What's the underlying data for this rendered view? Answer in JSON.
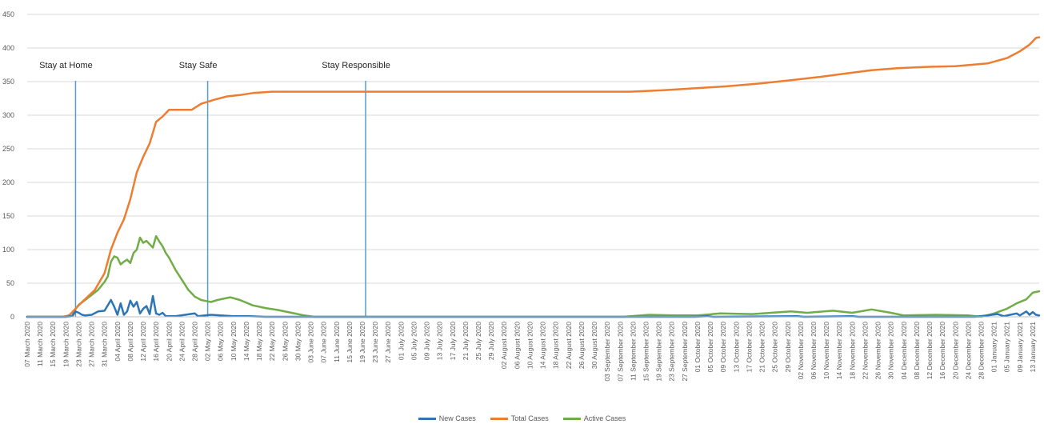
{
  "chart_data": {
    "type": "line",
    "title": "",
    "xlabel": "",
    "ylabel": "",
    "ylim": [
      0,
      450
    ],
    "yticks": [
      0,
      50,
      100,
      150,
      200,
      250,
      300,
      350,
      400,
      450
    ],
    "grid": true,
    "legend_position": "bottom",
    "x_start": "2020-03-07",
    "x_end": "2021-01-15",
    "tick_labels": [
      "07 March 2020",
      "11 March 2020",
      "15 March 2020",
      "19 March 2020",
      "23 March 2020",
      "27 March 2020",
      "31 March 2020",
      "04 April 2020",
      "08 April 2020",
      "12 April 2020",
      "16 April 2020",
      "20 April 2020",
      "24 April 2020",
      "28 April 2020",
      "02 May 2020",
      "06 May 2020",
      "10 May 2020",
      "14 May 2020",
      "18 May 2020",
      "22 May 2020",
      "26 May 2020",
      "30 May 2020",
      "03 June 2020",
      "07 June 2020",
      "11 June 2020",
      "15 June 2020",
      "19 June 2020",
      "23 June 2020",
      "27 June 2020",
      "01 July 2020",
      "05 July 2020",
      "09 July 2020",
      "13 July 2020",
      "17 July 2020",
      "21 July 2020",
      "25 July 2020",
      "29 July 2020",
      "02 August 2020",
      "06 August 2020",
      "10 August 2020",
      "14 August 2020",
      "18 August 2020",
      "22 August 2020",
      "26 August 2020",
      "30 August 2020",
      "03 September 2020",
      "07 September 2020",
      "11 September 2020",
      "15 September 2020",
      "19 September 2020",
      "23 September 2020",
      "27 September 2020",
      "01 October 2020",
      "05 October 2020",
      "09 October 2020",
      "13 October 2020",
      "17 October 2020",
      "21 October 2020",
      "25 October 2020",
      "29 October 2020",
      "02 November 2020",
      "06 November 2020",
      "10 November 2020",
      "14 November 2020",
      "18 November 2020",
      "22 November 2020",
      "26 November 2020",
      "30 November 2020",
      "04 December 2020",
      "08 December 2020",
      "12 December 2020",
      "16 December 2020",
      "20 December 2020",
      "24 December 2020",
      "28 December 2020",
      "01 January 2021",
      "05 January 2021",
      "09 January 2021",
      "13 January 2021"
    ],
    "annotations": [
      {
        "label": "Stay at Home",
        "date": "2020-03-22"
      },
      {
        "label": "Stay Safe",
        "date": "2020-05-02"
      },
      {
        "label": "Stay Responsible",
        "date": "2020-06-20"
      }
    ],
    "series": [
      {
        "name": "New Cases",
        "color": "#2e75b6",
        "points": [
          [
            "2020-03-07",
            0
          ],
          [
            "2020-03-19",
            0
          ],
          [
            "2020-03-21",
            1
          ],
          [
            "2020-03-22",
            8
          ],
          [
            "2020-03-23",
            6
          ],
          [
            "2020-03-24",
            3
          ],
          [
            "2020-03-25",
            2
          ],
          [
            "2020-03-27",
            3
          ],
          [
            "2020-03-29",
            8
          ],
          [
            "2020-03-31",
            9
          ],
          [
            "2020-04-02",
            25
          ],
          [
            "2020-04-03",
            15
          ],
          [
            "2020-04-04",
            3
          ],
          [
            "2020-04-05",
            20
          ],
          [
            "2020-04-06",
            3
          ],
          [
            "2020-04-07",
            8
          ],
          [
            "2020-04-08",
            24
          ],
          [
            "2020-04-09",
            15
          ],
          [
            "2020-04-10",
            22
          ],
          [
            "2020-04-11",
            5
          ],
          [
            "2020-04-12",
            12
          ],
          [
            "2020-04-13",
            16
          ],
          [
            "2020-04-14",
            4
          ],
          [
            "2020-04-15",
            31
          ],
          [
            "2020-04-16",
            5
          ],
          [
            "2020-04-17",
            3
          ],
          [
            "2020-04-18",
            6
          ],
          [
            "2020-04-19",
            1
          ],
          [
            "2020-04-22",
            1
          ],
          [
            "2020-04-28",
            5
          ],
          [
            "2020-04-29",
            1
          ],
          [
            "2020-05-03",
            3
          ],
          [
            "2020-05-06",
            2
          ],
          [
            "2020-05-10",
            1
          ],
          [
            "2020-05-15",
            1
          ],
          [
            "2020-05-20",
            0
          ],
          [
            "2020-09-30",
            0
          ],
          [
            "2020-10-04",
            1
          ],
          [
            "2020-10-06",
            0
          ],
          [
            "2020-11-01",
            1
          ],
          [
            "2020-11-03",
            0
          ],
          [
            "2020-11-18",
            1
          ],
          [
            "2020-11-20",
            0
          ],
          [
            "2020-12-26",
            0
          ],
          [
            "2020-12-30",
            2
          ],
          [
            "2021-01-02",
            4
          ],
          [
            "2021-01-04",
            1
          ],
          [
            "2021-01-06",
            3
          ],
          [
            "2021-01-08",
            5
          ],
          [
            "2021-01-09",
            2
          ],
          [
            "2021-01-11",
            8
          ],
          [
            "2021-01-12",
            3
          ],
          [
            "2021-01-13",
            7
          ],
          [
            "2021-01-14",
            3
          ],
          [
            "2021-01-15",
            2
          ]
        ]
      },
      {
        "name": "Total Cases",
        "color": "#ed7d31",
        "points": [
          [
            "2020-03-07",
            0
          ],
          [
            "2020-03-18",
            0
          ],
          [
            "2020-03-20",
            2
          ],
          [
            "2020-03-22",
            12
          ],
          [
            "2020-03-24",
            22
          ],
          [
            "2020-03-28",
            40
          ],
          [
            "2020-03-31",
            65
          ],
          [
            "2020-04-02",
            100
          ],
          [
            "2020-04-04",
            125
          ],
          [
            "2020-04-06",
            145
          ],
          [
            "2020-04-08",
            175
          ],
          [
            "2020-04-10",
            215
          ],
          [
            "2020-04-12",
            238
          ],
          [
            "2020-04-14",
            258
          ],
          [
            "2020-04-16",
            290
          ],
          [
            "2020-04-18",
            298
          ],
          [
            "2020-04-20",
            308
          ],
          [
            "2020-04-27",
            308
          ],
          [
            "2020-04-30",
            317
          ],
          [
            "2020-05-04",
            323
          ],
          [
            "2020-05-08",
            328
          ],
          [
            "2020-05-12",
            330
          ],
          [
            "2020-05-16",
            333
          ],
          [
            "2020-05-22",
            335
          ],
          [
            "2020-09-10",
            335
          ],
          [
            "2020-09-20",
            337
          ],
          [
            "2020-09-30",
            340
          ],
          [
            "2020-10-10",
            343
          ],
          [
            "2020-10-20",
            347
          ],
          [
            "2020-10-30",
            352
          ],
          [
            "2020-11-08",
            357
          ],
          [
            "2020-11-16",
            362
          ],
          [
            "2020-11-24",
            367
          ],
          [
            "2020-12-02",
            370
          ],
          [
            "2020-12-12",
            372
          ],
          [
            "2020-12-20",
            373
          ],
          [
            "2020-12-30",
            377
          ],
          [
            "2021-01-05",
            385
          ],
          [
            "2021-01-09",
            395
          ],
          [
            "2021-01-12",
            405
          ],
          [
            "2021-01-14",
            415
          ],
          [
            "2021-01-15",
            416
          ]
        ]
      },
      {
        "name": "Active Cases",
        "color": "#70ad47",
        "points": [
          [
            "2020-03-07",
            0
          ],
          [
            "2020-03-19",
            0
          ],
          [
            "2020-03-21",
            5
          ],
          [
            "2020-03-23",
            18
          ],
          [
            "2020-03-25",
            25
          ],
          [
            "2020-03-29",
            40
          ],
          [
            "2020-03-31",
            52
          ],
          [
            "2020-04-01",
            60
          ],
          [
            "2020-04-02",
            82
          ],
          [
            "2020-04-03",
            90
          ],
          [
            "2020-04-04",
            88
          ],
          [
            "2020-04-05",
            78
          ],
          [
            "2020-04-06",
            82
          ],
          [
            "2020-04-07",
            85
          ],
          [
            "2020-04-08",
            80
          ],
          [
            "2020-04-09",
            95
          ],
          [
            "2020-04-10",
            100
          ],
          [
            "2020-04-11",
            118
          ],
          [
            "2020-04-12",
            110
          ],
          [
            "2020-04-13",
            113
          ],
          [
            "2020-04-14",
            108
          ],
          [
            "2020-04-15",
            103
          ],
          [
            "2020-04-16",
            120
          ],
          [
            "2020-04-17",
            112
          ],
          [
            "2020-04-18",
            105
          ],
          [
            "2020-04-19",
            95
          ],
          [
            "2020-04-20",
            88
          ],
          [
            "2020-04-22",
            70
          ],
          [
            "2020-04-24",
            55
          ],
          [
            "2020-04-26",
            40
          ],
          [
            "2020-04-28",
            30
          ],
          [
            "2020-04-30",
            25
          ],
          [
            "2020-05-03",
            22
          ],
          [
            "2020-05-05",
            25
          ],
          [
            "2020-05-09",
            29
          ],
          [
            "2020-05-12",
            25
          ],
          [
            "2020-05-16",
            17
          ],
          [
            "2020-05-20",
            13
          ],
          [
            "2020-05-24",
            10
          ],
          [
            "2020-05-28",
            6
          ],
          [
            "2020-06-01",
            2
          ],
          [
            "2020-06-04",
            0
          ],
          [
            "2020-09-08",
            0
          ],
          [
            "2020-09-16",
            3
          ],
          [
            "2020-09-24",
            2
          ],
          [
            "2020-10-01",
            2
          ],
          [
            "2020-10-08",
            5
          ],
          [
            "2020-10-18",
            4
          ],
          [
            "2020-10-30",
            8
          ],
          [
            "2020-11-04",
            6
          ],
          [
            "2020-11-12",
            9
          ],
          [
            "2020-11-18",
            6
          ],
          [
            "2020-11-24",
            11
          ],
          [
            "2020-11-30",
            6
          ],
          [
            "2020-12-04",
            2
          ],
          [
            "2020-12-14",
            3
          ],
          [
            "2020-12-24",
            2
          ],
          [
            "2020-12-28",
            0
          ],
          [
            "2021-01-01",
            5
          ],
          [
            "2021-01-05",
            12
          ],
          [
            "2021-01-08",
            20
          ],
          [
            "2021-01-11",
            26
          ],
          [
            "2021-01-13",
            36
          ],
          [
            "2021-01-15",
            38
          ]
        ]
      }
    ]
  }
}
